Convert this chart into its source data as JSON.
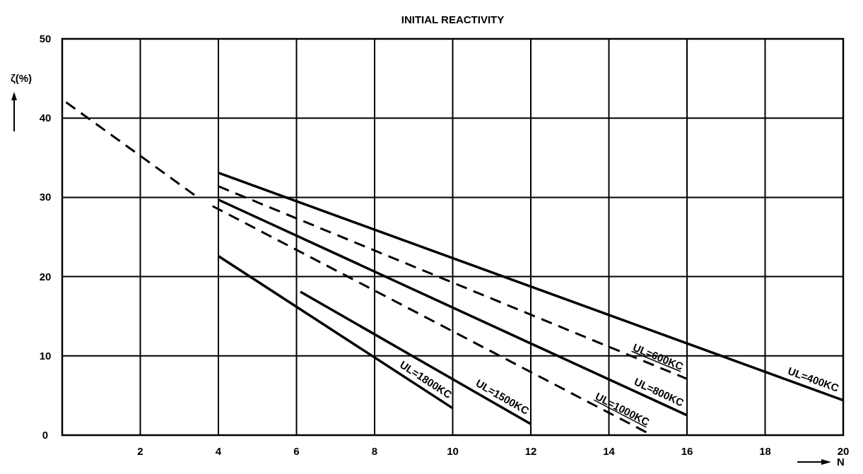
{
  "chart_data": {
    "type": "line",
    "title": "INITIAL REACTIVITY",
    "xlabel": "N",
    "ylabel": "ζ(%)",
    "xlim": [
      0,
      20
    ],
    "xticks": [
      2,
      4,
      6,
      8,
      10,
      12,
      14,
      16,
      18,
      20
    ],
    "ylim": [
      0,
      50
    ],
    "yticks": [
      0,
      10,
      20,
      30,
      40,
      50
    ],
    "grid": true,
    "series": [
      {
        "name": "UL=400KC",
        "color": "#000000",
        "line_style": "solid",
        "x": [
          4,
          20
        ],
        "values": [
          33.1,
          4.4
        ]
      },
      {
        "name": "UL=600KC",
        "color": "#000000",
        "line_style": "dashed",
        "x": [
          4,
          16
        ],
        "values": [
          31.4,
          7.1
        ]
      },
      {
        "name": "UL=800KC",
        "color": "#000000",
        "line_style": "solid",
        "x": [
          4,
          16
        ],
        "values": [
          29.7,
          2.5
        ]
      },
      {
        "name": "UL=1000KC",
        "color": "#000000",
        "line_style": "dashed",
        "x": [
          3.85,
          15.1
        ],
        "values": [
          28.9,
          0
        ]
      },
      {
        "name": "UL=1500KC",
        "color": "#000000",
        "line_style": "solid",
        "x": [
          6.1,
          12
        ],
        "values": [
          18.1,
          1.4
        ]
      },
      {
        "name": "UL=1800KC",
        "color": "#000000",
        "line_style": "solid",
        "x": [
          4,
          10
        ],
        "values": [
          22.6,
          3.4
        ]
      },
      {
        "color": "#000000",
        "line_style": "dashed",
        "x": [
          0.1,
          3.5
        ],
        "values": [
          42,
          29.9
        ]
      }
    ]
  }
}
